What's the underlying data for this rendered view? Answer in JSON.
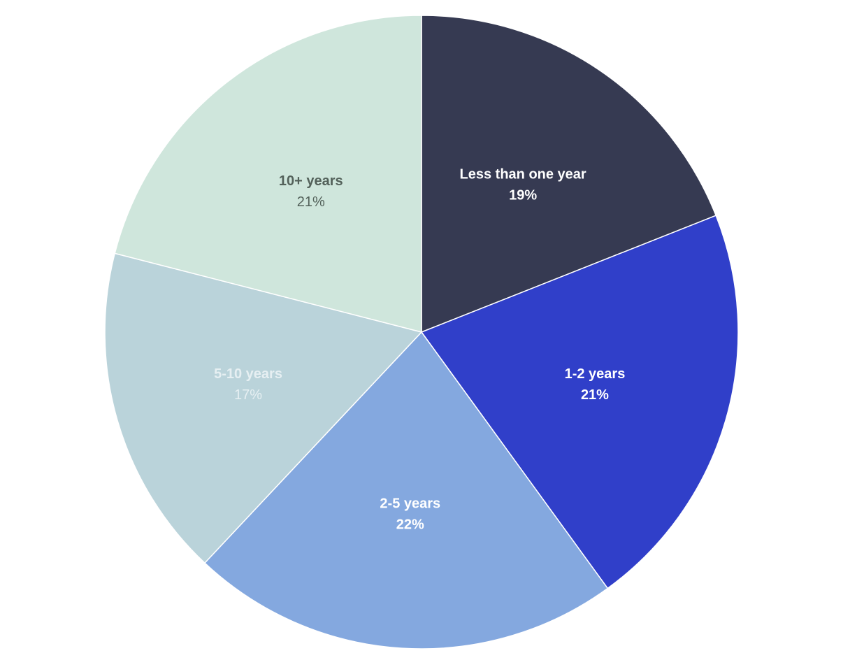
{
  "chart_data": {
    "type": "pie",
    "title": "",
    "start_angle_deg": 0,
    "direction": "clockwise",
    "legend": "none",
    "slices": [
      {
        "label": "Less than one year",
        "value": 19,
        "value_label": "19%",
        "color": "#363a52",
        "text_color": "#ffffff",
        "pct_bold": true
      },
      {
        "label": "1-2 years",
        "value": 21,
        "value_label": "21%",
        "color": "#303fc9",
        "text_color": "#ffffff",
        "pct_bold": true
      },
      {
        "label": "2-5 years",
        "value": 22,
        "value_label": "22%",
        "color": "#84a8df",
        "text_color": "#ffffff",
        "pct_bold": true
      },
      {
        "label": "5-10 years",
        "value": 17,
        "value_label": "17%",
        "color": "#bad3da",
        "text_color": "#e6eff2",
        "pct_bold": false
      },
      {
        "label": "10+ years",
        "value": 21,
        "value_label": "21%",
        "color": "#cfe6dc",
        "text_color": "#53615a",
        "pct_bold": false
      }
    ]
  }
}
